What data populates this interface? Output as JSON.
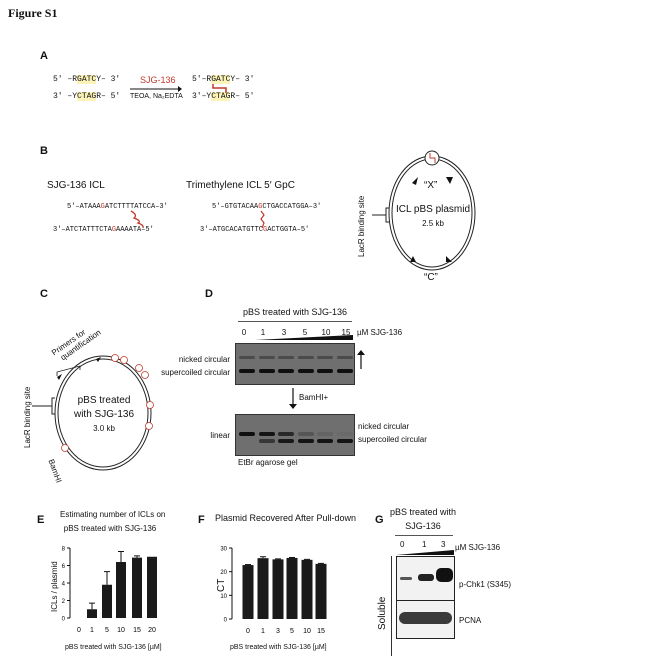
{
  "figure_title": "Figure S1",
  "panel_a": {
    "label": "A",
    "left_top": [
      "5′ –R",
      "GATC",
      "Y– 3′"
    ],
    "left_bottom": [
      "3′ –Y",
      "CTAG",
      "R– 5′"
    ],
    "reagent": "SJG-136",
    "conditions": "TEOA, Na₂EDTA",
    "right_top": [
      "5′–R",
      "GATC",
      "Y– 3′"
    ],
    "right_bottom": [
      "3′–Y",
      "CTAG",
      "R– 5′"
    ],
    "crosslink_color": "#c0392b",
    "highlight_color": "#fbf3b8"
  },
  "panel_b": {
    "label": "B",
    "icl1_title": "SJG-136 ICL",
    "icl1_top": [
      "5′–ATAAA",
      "G",
      "ATCTTTTATCCA–3′"
    ],
    "icl1_bottom": [
      "3′–ATCTATTTCTA",
      "G",
      "AAAATA–5′"
    ],
    "icl2_title": "Trimethylene ICL 5′ GpC",
    "icl2_top": [
      "5′–GTGTACAA",
      "G",
      "CTGACCATGGA–3′"
    ],
    "icl2_bottom": [
      "3′–ATGCACATGTTC",
      "G",
      "ACTGGTA–5′"
    ],
    "plasmid_name": "ICL pBS plasmid",
    "plasmid_size": "2.5 kb",
    "site_x": "“X”",
    "site_c": "“C”",
    "lacr": "LacR binding site"
  },
  "panel_c": {
    "label": "C",
    "plasmid_line1": "pBS treated",
    "plasmid_line2": "with SJG-136",
    "plasmid_size": "3.0 kb",
    "lacr": "LacR binding site",
    "primers_line1": "Primers for",
    "primers_line2": "quantification",
    "bamhi": "BamHI"
  },
  "panel_d": {
    "label": "D",
    "header": "pBS treated with SJG-136",
    "lanes": [
      "0",
      "1",
      "3",
      "5",
      "10",
      "15"
    ],
    "unit": "µM SJG-136",
    "gel1_labels": [
      "nicked circular",
      "supercoiled circular"
    ],
    "digest": "BamHI+",
    "gel2_left_label": "linear",
    "gel2_right_labels": [
      "nicked circular",
      "supercoiled circular"
    ],
    "gel_caption": "EtBr agarose gel"
  },
  "panel_g": {
    "label": "G",
    "title_line1": "pBS treated with",
    "title_line2": "SJG-136",
    "lanes": [
      "0",
      "1",
      "3"
    ],
    "unit": "µM SJG-136",
    "fraction": "Soluble",
    "blot1": "p-Chk1 (S345)",
    "blot2": "PCNA"
  },
  "chart_data": [
    {
      "panel": "E",
      "type": "bar",
      "title_line1": "Estimating number of ICLs on",
      "title_line2": "pBS  treated with SJG-136",
      "categories": [
        "0",
        "1",
        "5",
        "10",
        "15",
        "20"
      ],
      "values": [
        0,
        1.0,
        3.8,
        6.4,
        6.9,
        7.0
      ],
      "error_upper": [
        0,
        1.7,
        5.3,
        7.6,
        7.1,
        7.0
      ],
      "xlabel": "pBS treated with SJG-136 [µM]",
      "ylabel": "ICLs / plasmid",
      "ylim": [
        0,
        8
      ],
      "yticks": [
        "0",
        "2",
        "4",
        "6",
        "8"
      ],
      "grid": false,
      "bar_color": "#1a1a1a"
    },
    {
      "panel": "F",
      "type": "bar",
      "title": "Plasmid Recovered After Pull-down",
      "categories": [
        "0",
        "1",
        "3",
        "5",
        "10",
        "15"
      ],
      "values": [
        22.8,
        25.7,
        25.2,
        25.8,
        25.0,
        23.3
      ],
      "error_upper": [
        23.0,
        26.3,
        25.4,
        26.0,
        25.2,
        23.5
      ],
      "xlabel": "pBS treated with SJG-136 [µM]",
      "ylabel": "CT",
      "ylim": [
        0,
        30
      ],
      "yticks": [
        "0",
        "10",
        "20",
        "30"
      ],
      "grid": false,
      "bar_color": "#1a1a1a"
    }
  ]
}
